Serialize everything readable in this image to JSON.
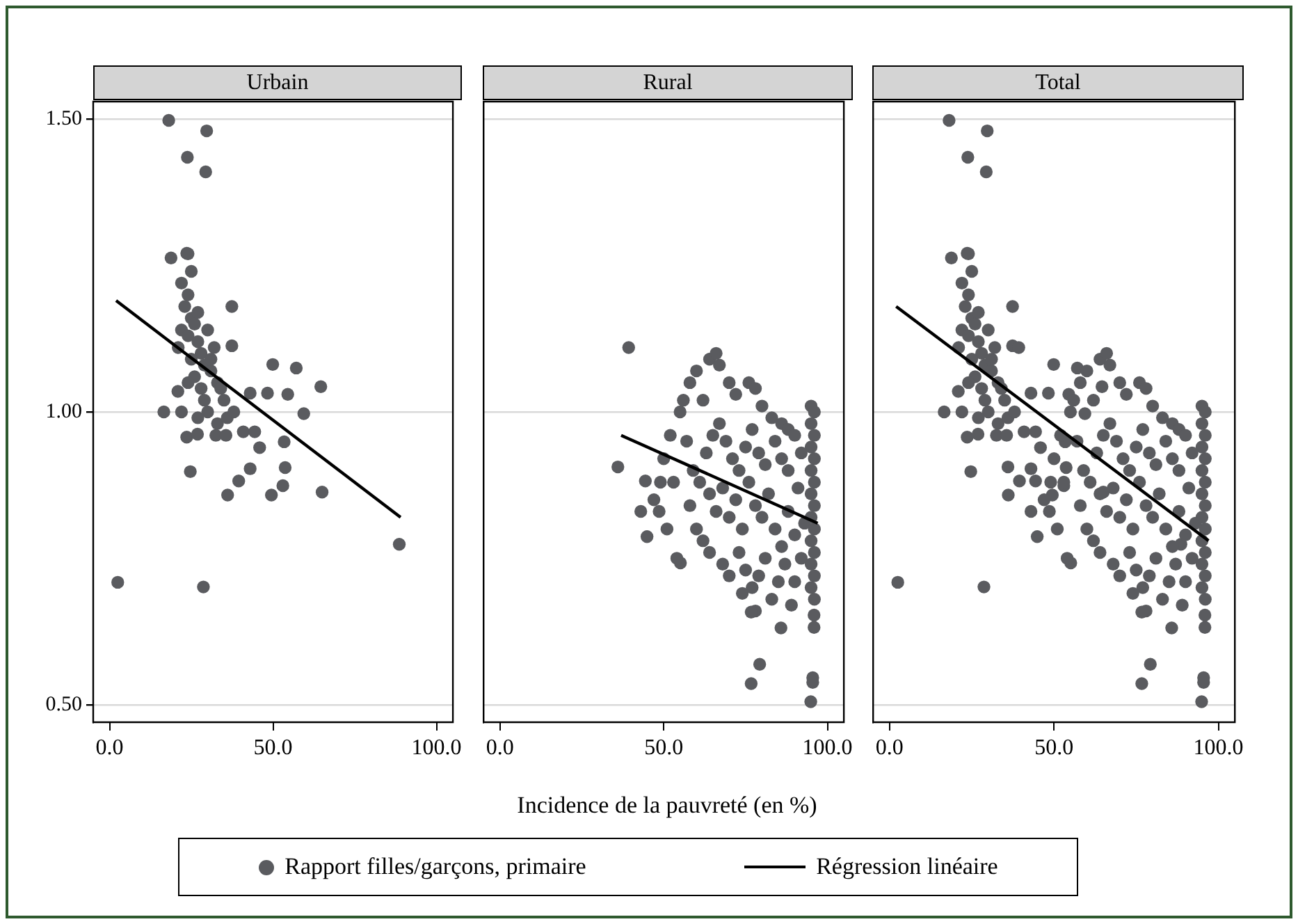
{
  "chart_data": [
    {
      "type": "scatter",
      "title": "Urbain",
      "xlim": [
        -5,
        105
      ],
      "ylim": [
        0.47,
        1.53
      ],
      "xticks": [
        {
          "value": 0,
          "label": "0.0"
        },
        {
          "value": 50,
          "label": "50.0"
        },
        {
          "value": 100,
          "label": "100.0"
        }
      ],
      "yticks": [
        {
          "value": 0.5,
          "label": "0.50"
        },
        {
          "value": 1,
          "label": "1.00"
        },
        {
          "value": 1.5,
          "label": "1.50"
        }
      ],
      "grid": "y",
      "series": [
        {
          "marker": "circle",
          "color": "#5a5b5f",
          "x": [
            18.1,
            29.7,
            23.8,
            29.4,
            18.8,
            23.6,
            37.4,
            37.4,
            49.9,
            57.1,
            64.6,
            20.9,
            16.6,
            43,
            48.3,
            54.5,
            59.4,
            23.6,
            26.9,
            32.5,
            35.6,
            40.9,
            44.4,
            45.9,
            53.4,
            24.7,
            43,
            39.5,
            36.1,
            49.5,
            53,
            53.7,
            65,
            88.6,
            2.5,
            28.7,
            22,
            24,
            23,
            25,
            26,
            22,
            24,
            27,
            30,
            32,
            28,
            25,
            29,
            31,
            26,
            33,
            28,
            24,
            35,
            30,
            27,
            33,
            36,
            38,
            22,
            29,
            34,
            31,
            21,
            27,
            25,
            24
          ],
          "values": [
            1.498,
            1.48,
            1.435,
            1.41,
            1.263,
            1.271,
            1.18,
            1.113,
            1.081,
            1.075,
            1.043,
            1.035,
            1.0,
            1.032,
            1.032,
            1.03,
            0.997,
            0.957,
            0.962,
            0.96,
            0.96,
            0.966,
            0.966,
            0.939,
            0.949,
            0.898,
            0.903,
            0.882,
            0.858,
            0.858,
            0.874,
            0.905,
            0.863,
            0.774,
            0.709,
            0.701,
            1.22,
            1.2,
            1.18,
            1.16,
            1.15,
            1.14,
            1.13,
            1.12,
            1.14,
            1.11,
            1.1,
            1.09,
            1.08,
            1.07,
            1.06,
            1.05,
            1.04,
            1.05,
            1.02,
            1.0,
            0.99,
            0.98,
            0.99,
            1.0,
            1.0,
            1.02,
            1.04,
            1.09,
            1.11,
            1.17,
            1.24,
            1.27
          ]
        },
        {
          "type": "line",
          "color": "#000000",
          "x": [
            2,
            89
          ],
          "values": [
            1.19,
            0.82
          ]
        }
      ]
    },
    {
      "type": "scatter",
      "title": "Rural",
      "xlim": [
        -5,
        105
      ],
      "ylim": [
        0.47,
        1.53
      ],
      "xticks": [
        {
          "value": 0,
          "label": "0.0"
        },
        {
          "value": 50,
          "label": "50.0"
        },
        {
          "value": 100,
          "label": "100.0"
        }
      ],
      "grid": "y",
      "tick_labels": "x",
      "xlabel": "Incidence de la pauvreté (en %)",
      "legend": "bottom",
      "series": [
        {
          "marker": "circle",
          "name": "Rapport filles/garçons, primaire",
          "color": "#5a5b5f",
          "x": [
            39.3,
            36,
            44.4,
            43,
            48.6,
            44.9,
            55.1,
            54,
            47,
            50,
            52,
            55,
            56,
            58,
            60,
            62,
            64,
            66,
            67,
            70,
            72,
            76,
            78,
            80,
            83,
            86,
            88,
            90,
            57,
            59,
            61,
            63,
            65,
            67,
            69,
            71,
            73,
            75,
            77,
            79,
            81,
            84,
            86,
            88,
            58,
            60,
            62,
            64,
            66,
            68,
            70,
            72,
            74,
            76,
            78,
            80,
            82,
            84,
            86,
            88,
            90,
            64,
            68,
            70,
            73,
            75,
            77,
            79,
            81,
            83,
            85,
            87,
            74,
            78,
            76.7,
            85.8,
            79.3,
            76.7,
            95,
            96,
            95,
            96,
            95,
            96,
            95,
            96,
            95,
            96,
            95,
            96,
            95,
            96,
            95,
            96,
            95,
            96,
            95.9,
            95.9,
            95.5,
            95.5,
            94.9,
            92,
            91,
            93,
            92,
            90,
            89,
            53,
            51,
            49
          ],
          "values": [
            1.11,
            0.906,
            0.882,
            0.83,
            0.83,
            0.787,
            0.742,
            0.75,
            0.85,
            0.92,
            0.96,
            1.0,
            1.02,
            1.05,
            1.07,
            1.02,
            1.09,
            1.1,
            1.08,
            1.05,
            1.03,
            1.05,
            1.04,
            1.01,
            0.99,
            0.98,
            0.97,
            0.96,
            0.95,
            0.9,
            0.88,
            0.93,
            0.96,
            0.98,
            0.95,
            0.92,
            0.9,
            0.94,
            0.97,
            0.93,
            0.91,
            0.95,
            0.92,
            0.9,
            0.84,
            0.8,
            0.78,
            0.86,
            0.83,
            0.87,
            0.82,
            0.85,
            0.8,
            0.88,
            0.84,
            0.82,
            0.86,
            0.8,
            0.77,
            0.83,
            0.79,
            0.76,
            0.74,
            0.72,
            0.76,
            0.73,
            0.7,
            0.72,
            0.75,
            0.68,
            0.71,
            0.74,
            0.69,
            0.66,
            0.658,
            0.631,
            0.569,
            0.536,
            1.01,
            1.0,
            0.98,
            0.96,
            0.94,
            0.92,
            0.9,
            0.88,
            0.86,
            0.84,
            0.82,
            0.8,
            0.78,
            0.76,
            0.74,
            0.72,
            0.7,
            0.68,
            0.653,
            0.632,
            0.546,
            0.538,
            0.505,
            0.93,
            0.87,
            0.81,
            0.75,
            0.71,
            0.67,
            0.88,
            0.8,
            0.88
          ]
        },
        {
          "type": "line",
          "name": "Régression linéaire",
          "color": "#000000",
          "x": [
            37,
            97
          ],
          "values": [
            0.96,
            0.81
          ]
        }
      ]
    },
    {
      "type": "scatter",
      "title": "Total",
      "xlim": [
        -5,
        105
      ],
      "ylim": [
        0.47,
        1.53
      ],
      "xticks": [
        {
          "value": 0,
          "label": "0.0"
        },
        {
          "value": 50,
          "label": "50.0"
        },
        {
          "value": 100,
          "label": "100.0"
        }
      ],
      "grid": "y",
      "tick_labels": "x",
      "series": [
        {
          "marker": "circle",
          "color": "#5a5b5f",
          "x": [
            18.1,
            29.7,
            23.8,
            29.4,
            18.8,
            23.6,
            37.4,
            37.4,
            49.9,
            57.1,
            64.6,
            20.9,
            16.6,
            43,
            48.3,
            54.5,
            59.4,
            23.6,
            26.9,
            32.5,
            35.6,
            40.9,
            44.4,
            45.9,
            53.4,
            24.7,
            43,
            39.5,
            36.1,
            49.5,
            53,
            53.7,
            65,
            88.6,
            2.5,
            28.7,
            22,
            24,
            23,
            25,
            26,
            22,
            24,
            27,
            30,
            32,
            28,
            25,
            29,
            31,
            26,
            33,
            28,
            24,
            35,
            30,
            27,
            33,
            36,
            38,
            22,
            29,
            34,
            31,
            21,
            27,
            25,
            24,
            39.3,
            36,
            44.4,
            43,
            48.6,
            44.9,
            55.1,
            54,
            47,
            50,
            52,
            55,
            56,
            58,
            60,
            62,
            64,
            66,
            67,
            70,
            72,
            76,
            78,
            80,
            83,
            86,
            88,
            90,
            57,
            59,
            61,
            63,
            65,
            67,
            69,
            71,
            73,
            75,
            77,
            79,
            81,
            84,
            86,
            88,
            58,
            60,
            62,
            64,
            66,
            68,
            70,
            72,
            74,
            76,
            78,
            80,
            82,
            84,
            86,
            88,
            90,
            64,
            68,
            70,
            73,
            75,
            77,
            79,
            81,
            83,
            85,
            87,
            74,
            78,
            76.7,
            85.8,
            79.3,
            76.7,
            95,
            96,
            95,
            96,
            95,
            96,
            95,
            96,
            95,
            96,
            95,
            96,
            95,
            96,
            95,
            96,
            95,
            96,
            95.9,
            95.9,
            95.5,
            95.5,
            94.9,
            92,
            91,
            93,
            92,
            90,
            89,
            53,
            51,
            49
          ],
          "values": [
            1.498,
            1.48,
            1.435,
            1.41,
            1.263,
            1.271,
            1.18,
            1.113,
            1.081,
            1.075,
            1.043,
            1.035,
            1.0,
            1.032,
            1.032,
            1.03,
            0.997,
            0.957,
            0.962,
            0.96,
            0.96,
            0.966,
            0.966,
            0.939,
            0.949,
            0.898,
            0.903,
            0.882,
            0.858,
            0.858,
            0.874,
            0.905,
            0.863,
            0.774,
            0.709,
            0.701,
            1.22,
            1.2,
            1.18,
            1.16,
            1.15,
            1.14,
            1.13,
            1.12,
            1.14,
            1.11,
            1.1,
            1.09,
            1.08,
            1.07,
            1.06,
            1.05,
            1.04,
            1.05,
            1.02,
            1.0,
            0.99,
            0.98,
            0.99,
            1.0,
            1.0,
            1.02,
            1.04,
            1.09,
            1.11,
            1.17,
            1.24,
            1.27,
            1.11,
            0.906,
            0.882,
            0.83,
            0.83,
            0.787,
            0.742,
            0.75,
            0.85,
            0.92,
            0.96,
            1.0,
            1.02,
            1.05,
            1.07,
            1.02,
            1.09,
            1.1,
            1.08,
            1.05,
            1.03,
            1.05,
            1.04,
            1.01,
            0.99,
            0.98,
            0.97,
            0.96,
            0.95,
            0.9,
            0.88,
            0.93,
            0.96,
            0.98,
            0.95,
            0.92,
            0.9,
            0.94,
            0.97,
            0.93,
            0.91,
            0.95,
            0.92,
            0.9,
            0.84,
            0.8,
            0.78,
            0.86,
            0.83,
            0.87,
            0.82,
            0.85,
            0.8,
            0.88,
            0.84,
            0.82,
            0.86,
            0.8,
            0.77,
            0.83,
            0.79,
            0.76,
            0.74,
            0.72,
            0.76,
            0.73,
            0.7,
            0.72,
            0.75,
            0.68,
            0.71,
            0.74,
            0.69,
            0.66,
            0.658,
            0.631,
            0.569,
            0.536,
            1.01,
            1.0,
            0.98,
            0.96,
            0.94,
            0.92,
            0.9,
            0.88,
            0.86,
            0.84,
            0.82,
            0.8,
            0.78,
            0.76,
            0.74,
            0.72,
            0.7,
            0.68,
            0.653,
            0.632,
            0.546,
            0.538,
            0.505,
            0.93,
            0.87,
            0.81,
            0.75,
            0.71,
            0.67,
            0.88,
            0.8,
            0.88
          ]
        },
        {
          "type": "line",
          "color": "#000000",
          "x": [
            2,
            97
          ],
          "values": [
            1.18,
            0.78
          ]
        }
      ]
    }
  ]
}
